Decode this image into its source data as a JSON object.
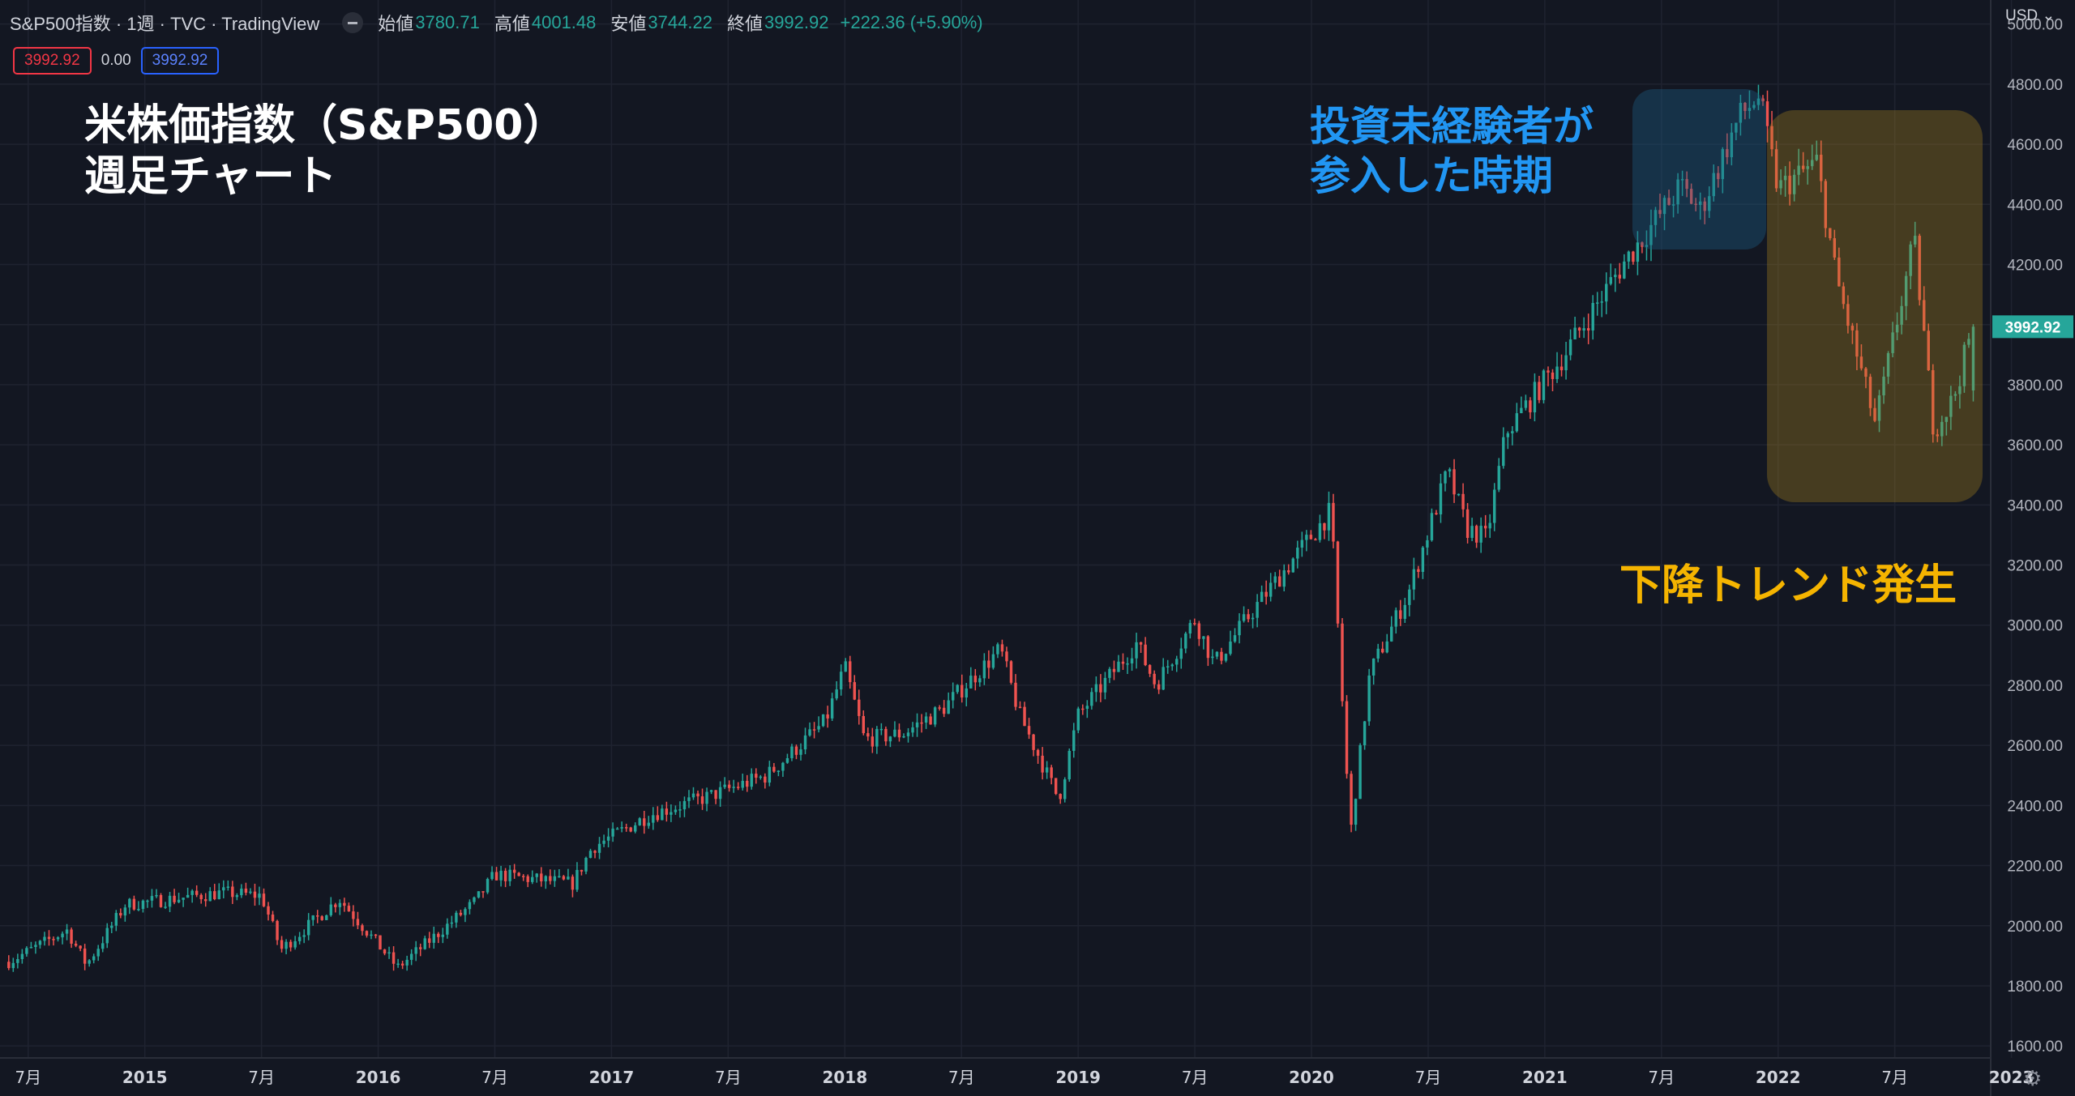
{
  "header": {
    "title": "S&P500指数 · 1週 · TVC · TradingView",
    "open_label": "始値",
    "open": "3780.71",
    "high_label": "高値",
    "high": "4001.48",
    "low_label": "安値",
    "low": "3744.22",
    "close_label": "終値",
    "close": "3992.92",
    "change": "+222.36 (+5.90%)"
  },
  "price_boxes": {
    "bid": "3992.92",
    "spread": "0.00",
    "ask": "3992.92"
  },
  "currency": "USD",
  "settings_icon": "gear-icon",
  "annotations": {
    "title_line1": "米株価指数（S&P500）",
    "title_line2": "週足チャート",
    "entry_line1": "投資未経験者が",
    "entry_line2": "参入した時期",
    "downtrend": "下降トレンド発生"
  },
  "colors": {
    "up": "#26a69a",
    "down": "#ef5350",
    "background": "#131722",
    "blue_label": "#2196f3",
    "yellow_label": "#f5b400"
  },
  "chart_data": {
    "type": "candlestick",
    "interval": "1週",
    "y_axis": {
      "ylim": [
        1560,
        5080
      ],
      "ticks": [
        "1600.00",
        "1800.00",
        "2000.00",
        "2200.00",
        "2400.00",
        "2600.00",
        "2800.00",
        "3000.00",
        "3200.00",
        "3400.00",
        "3600.00",
        "3800.00",
        "4000.00",
        "4200.00",
        "4400.00",
        "4600.00",
        "4800.00",
        "5000.00"
      ],
      "last_price": "3992.92"
    },
    "x_axis": {
      "ticks": [
        "7月",
        "2015",
        "7月",
        "2016",
        "7月",
        "2017",
        "7月",
        "2018",
        "7月",
        "2019",
        "7月",
        "2020",
        "7月",
        "2021",
        "7月",
        "2022",
        "7月",
        "2023"
      ],
      "range": [
        "2014-06",
        "2022-11"
      ]
    },
    "grid": true,
    "close_anchors": [
      [
        "2014-06",
        1880
      ],
      [
        "2014-09",
        1985
      ],
      [
        "2014-10",
        1870
      ],
      [
        "2014-12",
        2070
      ],
      [
        "2015-05",
        2110
      ],
      [
        "2015-07",
        2100
      ],
      [
        "2015-08",
        1920
      ],
      [
        "2015-11",
        2090
      ],
      [
        "2016-02",
        1860
      ],
      [
        "2016-06",
        2080
      ],
      [
        "2016-07",
        2170
      ],
      [
        "2016-11",
        2140
      ],
      [
        "2016-12",
        2260
      ],
      [
        "2017-03",
        2370
      ],
      [
        "2017-06",
        2430
      ],
      [
        "2017-09",
        2500
      ],
      [
        "2017-12",
        2680
      ],
      [
        "2018-01",
        2860
      ],
      [
        "2018-02",
        2620
      ],
      [
        "2018-04",
        2640
      ],
      [
        "2018-06",
        2720
      ],
      [
        "2018-09",
        2920
      ],
      [
        "2018-10",
        2700
      ],
      [
        "2018-12",
        2420
      ],
      [
        "2019-01",
        2700
      ],
      [
        "2019-04",
        2940
      ],
      [
        "2019-05",
        2800
      ],
      [
        "2019-07",
        3020
      ],
      [
        "2019-08",
        2870
      ],
      [
        "2019-10",
        3050
      ],
      [
        "2020-02",
        3380
      ],
      [
        "2020-03",
        2300
      ],
      [
        "2020-04",
        2840
      ],
      [
        "2020-06",
        3110
      ],
      [
        "2020-08",
        3510
      ],
      [
        "2020-09",
        3320
      ],
      [
        "2020-10",
        3290
      ],
      [
        "2020-11",
        3640
      ],
      [
        "2021-02",
        3900
      ],
      [
        "2021-05",
        4200
      ],
      [
        "2021-08",
        4460
      ],
      [
        "2021-09",
        4380
      ],
      [
        "2021-11",
        4690
      ],
      [
        "2021-12",
        4760
      ],
      [
        "2022-01",
        4450
      ],
      [
        "2022-03",
        4540
      ],
      [
        "2022-04",
        4150
      ],
      [
        "2022-06",
        3670
      ],
      [
        "2022-08",
        4280
      ],
      [
        "2022-09",
        3650
      ],
      [
        "2022-10",
        3750
      ],
      [
        "2022-11",
        3993
      ]
    ],
    "last_candle": {
      "open": 3780.71,
      "high": 4001.48,
      "low": 3744.22,
      "close": 3992.92
    }
  }
}
